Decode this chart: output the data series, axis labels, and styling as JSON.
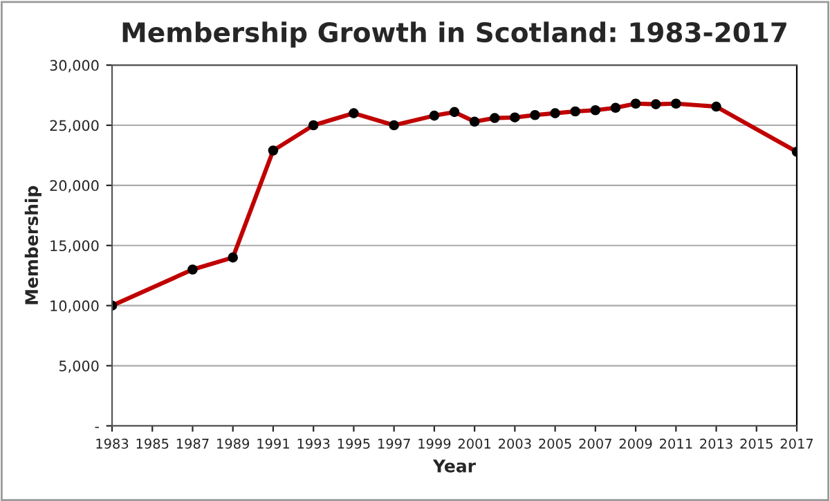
{
  "chart_data": {
    "type": "line",
    "title": "Membership Growth in Scotland: 1983-2017",
    "xlabel": "Year",
    "ylabel": "Membership",
    "x": [
      1983,
      1987,
      1989,
      1991,
      1993,
      1995,
      1997,
      1999,
      2000,
      2001,
      2002,
      2003,
      2004,
      2005,
      2006,
      2007,
      2008,
      2009,
      2010,
      2011,
      2013,
      2017
    ],
    "series": [
      {
        "color": "#c00000",
        "values": [
          10000,
          13000,
          14000,
          22900,
          25000,
          26000,
          25000,
          25800,
          26100,
          25300,
          25600,
          25650,
          25850,
          26000,
          26150,
          26250,
          26450,
          26800,
          26750,
          26800,
          26550,
          22800
        ]
      }
    ],
    "xlim": [
      1983,
      2017
    ],
    "xticks": [
      1983,
      1985,
      1987,
      1989,
      1991,
      1993,
      1995,
      1997,
      1999,
      2001,
      2003,
      2005,
      2007,
      2009,
      2011,
      2013,
      2015,
      2017
    ],
    "ylim": [
      0,
      30000
    ],
    "yticks": [
      {
        "value": 0,
        "label": "-"
      },
      {
        "value": 5000,
        "label": "5,000"
      },
      {
        "value": 10000,
        "label": "10,000"
      },
      {
        "value": 15000,
        "label": "15,000"
      },
      {
        "value": 20000,
        "label": "20,000"
      },
      {
        "value": 25000,
        "label": "25,000"
      },
      {
        "value": 30000,
        "label": "30,000"
      }
    ],
    "grid": "y",
    "marker": "circle",
    "line_style": "solid"
  }
}
